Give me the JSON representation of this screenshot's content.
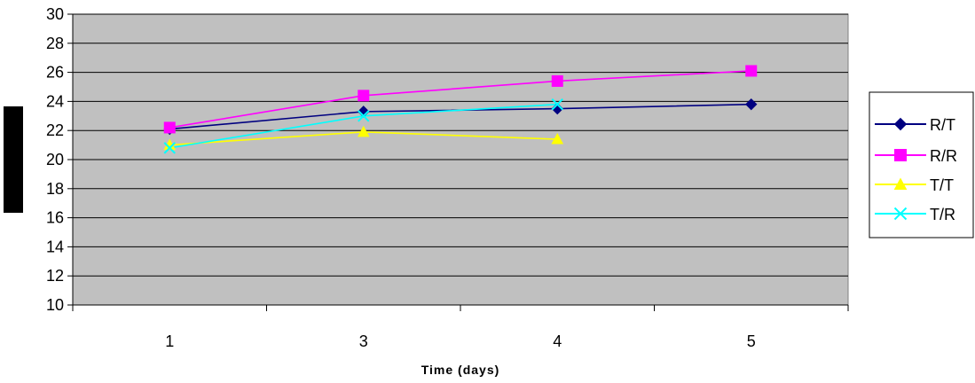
{
  "chart_data": {
    "type": "line",
    "title": "",
    "xlabel": "Time (days)",
    "ylabel": "",
    "categories": [
      "1",
      "3",
      "4",
      "5"
    ],
    "ylim": [
      10,
      30
    ],
    "yticks": [
      10,
      12,
      14,
      16,
      18,
      20,
      22,
      24,
      26,
      28,
      30
    ],
    "grid": "horizontal",
    "plot_background": "#c0c0c0",
    "legend_position": "right",
    "series": [
      {
        "name": "R/T",
        "values": [
          22.1,
          23.3,
          23.5,
          23.8
        ],
        "color": "#000080",
        "marker": "diamond"
      },
      {
        "name": "R/R",
        "values": [
          22.2,
          24.4,
          25.4,
          26.1
        ],
        "color": "#ff00ff",
        "marker": "square"
      },
      {
        "name": "T/T",
        "values": [
          21.0,
          21.9,
          21.4,
          null
        ],
        "color": "#ffff00",
        "marker": "triangle"
      },
      {
        "name": "T/R",
        "values": [
          20.8,
          23.0,
          23.8,
          null
        ],
        "color": "#00ffff",
        "marker": "x"
      }
    ]
  }
}
